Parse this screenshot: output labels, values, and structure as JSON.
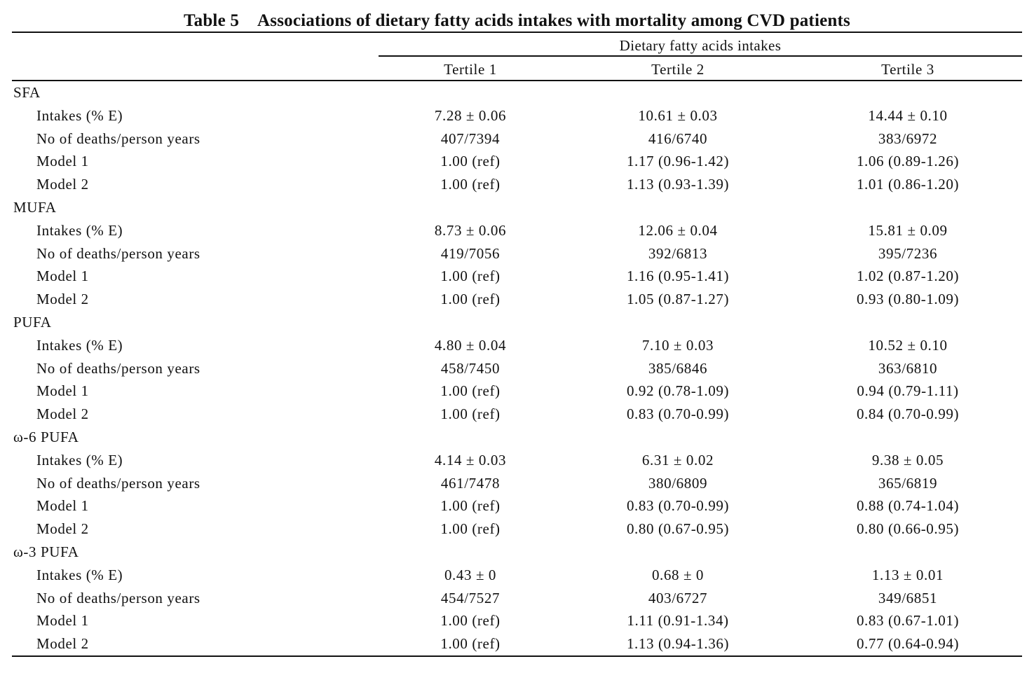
{
  "table": {
    "caption_label": "Table 5",
    "caption_title": "Associations of dietary fatty acids intakes with mortality among CVD patients",
    "spanner": "Dietary fatty acids intakes",
    "columns": [
      "Tertile 1",
      "Tertile 2",
      "Tertile 3"
    ],
    "groups": [
      {
        "name": "SFA",
        "rows": [
          {
            "label": "Intakes (% E)",
            "values": [
              "7.28 ± 0.06",
              "10.61 ± 0.03",
              "14.44 ± 0.10"
            ]
          },
          {
            "label": "No of deaths/person years",
            "values": [
              "407/7394",
              "416/6740",
              "383/6972"
            ]
          },
          {
            "label": "Model 1",
            "values": [
              "1.00 (ref)",
              "1.17 (0.96-1.42)",
              "1.06 (0.89-1.26)"
            ]
          },
          {
            "label": "Model 2",
            "values": [
              "1.00 (ref)",
              "1.13 (0.93-1.39)",
              "1.01 (0.86-1.20)"
            ]
          }
        ]
      },
      {
        "name": "MUFA",
        "rows": [
          {
            "label": "Intakes (% E)",
            "values": [
              "8.73 ± 0.06",
              "12.06 ± 0.04",
              "15.81 ± 0.09"
            ]
          },
          {
            "label": "No of deaths/person years",
            "values": [
              "419/7056",
              "392/6813",
              "395/7236"
            ]
          },
          {
            "label": "Model 1",
            "values": [
              "1.00 (ref)",
              "1.16 (0.95-1.41)",
              "1.02 (0.87-1.20)"
            ]
          },
          {
            "label": "Model 2",
            "values": [
              "1.00 (ref)",
              "1.05 (0.87-1.27)",
              "0.93 (0.80-1.09)"
            ]
          }
        ]
      },
      {
        "name": "PUFA",
        "rows": [
          {
            "label": "Intakes (% E)",
            "values": [
              "4.80 ± 0.04",
              "7.10 ± 0.03",
              "10.52 ± 0.10"
            ]
          },
          {
            "label": "No of deaths/person years",
            "values": [
              "458/7450",
              "385/6846",
              "363/6810"
            ]
          },
          {
            "label": "Model 1",
            "values": [
              "1.00 (ref)",
              "0.92 (0.78-1.09)",
              "0.94 (0.79-1.11)"
            ]
          },
          {
            "label": "Model 2",
            "values": [
              "1.00 (ref)",
              "0.83 (0.70-0.99)",
              "0.84 (0.70-0.99)"
            ]
          }
        ]
      },
      {
        "name": "ω-6 PUFA",
        "rows": [
          {
            "label": "Intakes (% E)",
            "values": [
              "4.14 ± 0.03",
              "6.31 ± 0.02",
              "9.38 ± 0.05"
            ]
          },
          {
            "label": "No of deaths/person years",
            "values": [
              "461/7478",
              "380/6809",
              "365/6819"
            ]
          },
          {
            "label": "Model 1",
            "values": [
              "1.00 (ref)",
              "0.83 (0.70-0.99)",
              "0.88 (0.74-1.04)"
            ]
          },
          {
            "label": "Model 2",
            "values": [
              "1.00 (ref)",
              "0.80 (0.67-0.95)",
              "0.80 (0.66-0.95)"
            ]
          }
        ]
      },
      {
        "name": "ω-3 PUFA",
        "rows": [
          {
            "label": "Intakes (% E)",
            "values": [
              "0.43 ± 0",
              "0.68 ± 0",
              "1.13 ± 0.01"
            ]
          },
          {
            "label": "No of deaths/person years",
            "values": [
              "454/7527",
              "403/6727",
              "349/6851"
            ]
          },
          {
            "label": "Model 1",
            "values": [
              "1.00 (ref)",
              "1.11 (0.91-1.34)",
              "0.83 (0.67-1.01)"
            ]
          },
          {
            "label": "Model 2",
            "values": [
              "1.00 (ref)",
              "1.13 (0.94-1.36)",
              "0.77 (0.64-0.94)"
            ]
          }
        ]
      }
    ]
  }
}
